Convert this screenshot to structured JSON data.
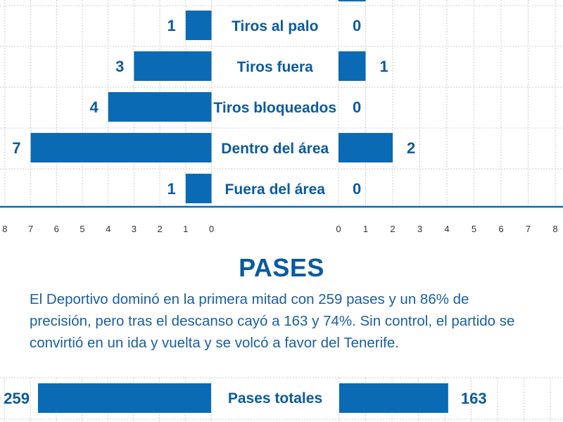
{
  "chart_data": [
    {
      "type": "bar",
      "orientation": "horizontal",
      "layout": "diverging",
      "categories": [
        "Tiros al palo",
        "Tiros fuera",
        "Tiros bloqueados",
        "Dentro del área",
        "Fuera del área"
      ],
      "series": [
        {
          "side": "left",
          "values": [
            1,
            3,
            4,
            7,
            1
          ]
        },
        {
          "side": "right",
          "values": [
            0,
            1,
            0,
            2,
            0
          ]
        }
      ],
      "xlim_left": [
        8,
        0
      ],
      "xlim_right": [
        0,
        8
      ],
      "xticks_left": [
        "8",
        "7",
        "6",
        "5",
        "4",
        "3",
        "2",
        "1",
        "0"
      ],
      "xticks_right": [
        "0",
        "1",
        "2",
        "3",
        "4",
        "5",
        "6",
        "7",
        "8"
      ],
      "grid": true
    },
    {
      "type": "bar",
      "orientation": "horizontal",
      "layout": "diverging",
      "categories": [
        "Pases totales"
      ],
      "series": [
        {
          "side": "left",
          "values": [
            259
          ]
        },
        {
          "side": "right",
          "values": [
            163
          ]
        }
      ],
      "grid": true
    }
  ],
  "section": {
    "title": "PASES",
    "text": "El Deportivo dominó en la primera mitad con 259 pases y un 86% de precisión, pero tras el descanso cayó a 163 y 74%. Sin control, el partido se convirtió en un ida y vuelta y se volcó a favor del Tenerife."
  },
  "colors": {
    "bar": "#0a6ab4",
    "text": "#0a5a9e",
    "grid": "#cccccc",
    "axis": "#0a6ab4"
  }
}
